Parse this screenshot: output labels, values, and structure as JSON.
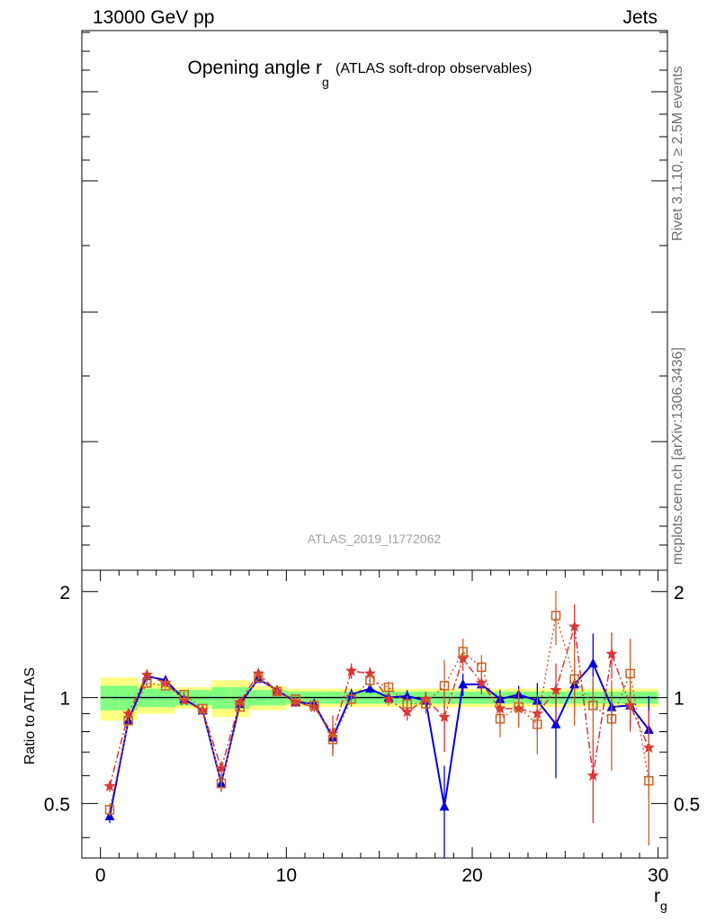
{
  "header": {
    "left": "13000 GeV pp",
    "right": "Jets"
  },
  "side_labels": {
    "rivet": "Rivet 3.1.10, ≥ 2.5M events",
    "url": "mcplots.cern.ch [arXiv:1306.3436]"
  },
  "main_panel": {
    "title_main": "Opening angle r",
    "title_sub": "g",
    "title_suffix": "(ATLAS soft-drop observables)",
    "watermark": "ATLAS_2019_I1772062"
  },
  "colors": {
    "yellow_band": "#ffff80",
    "green_band": "#80ff80",
    "blue_series": "#0000dd",
    "red_series": "#dd3333",
    "orange_series": "#c8622a"
  },
  "chart_data": {
    "type": "line",
    "ylabel": "Ratio to ATLAS",
    "xlabel_main": "r",
    "xlabel_sub": "g",
    "xlim": [
      -1,
      30.5
    ],
    "ylim": [
      0.35,
      2.3
    ],
    "x_ticks": [
      0,
      10,
      20,
      30
    ],
    "y_ticks": [
      0.5,
      1,
      2
    ],
    "y_tick_labels": [
      "0.5",
      "1",
      "2"
    ],
    "reference_line": 1,
    "bands": {
      "green_halfwidth": [
        0.08,
        0.08,
        0.06,
        0.06,
        0.05,
        0.05,
        0.07,
        0.07,
        0.05,
        0.05,
        0.04,
        0.04,
        0.04,
        0.04,
        0.04,
        0.04,
        0.04,
        0.04,
        0.04,
        0.04,
        0.04,
        0.04,
        0.04,
        0.04,
        0.04,
        0.04,
        0.04,
        0.04,
        0.04,
        0.04
      ],
      "yellow_halfwidth": [
        0.14,
        0.14,
        0.1,
        0.1,
        0.07,
        0.07,
        0.12,
        0.12,
        0.08,
        0.08,
        0.06,
        0.06,
        0.06,
        0.06,
        0.06,
        0.06,
        0.06,
        0.06,
        0.06,
        0.06,
        0.06,
        0.06,
        0.06,
        0.06,
        0.06,
        0.06,
        0.06,
        0.06,
        0.06,
        0.06
      ]
    },
    "series": [
      {
        "marker": "triangle",
        "line": "solid",
        "color": "#0000dd",
        "x": [
          0.5,
          1.5,
          2.5,
          3.5,
          4.5,
          5.5,
          6.5,
          7.5,
          8.5,
          9.5,
          10.5,
          11.5,
          12.5,
          13.5,
          14.5,
          15.5,
          16.5,
          17.5,
          18.5,
          19.5,
          20.5,
          21.5,
          22.5,
          23.5,
          24.5,
          25.5,
          26.5,
          27.5,
          28.5,
          29.5
        ],
        "y": [
          0.46,
          0.86,
          1.15,
          1.12,
          0.99,
          0.92,
          0.57,
          0.96,
          1.13,
          1.05,
          0.97,
          0.96,
          0.77,
          1.02,
          1.06,
          1.0,
          1.01,
          0.98,
          0.49,
          1.09,
          1.09,
          0.99,
          1.02,
          0.98,
          0.84,
          1.09,
          1.25,
          0.94,
          0.95,
          0.81
        ],
        "err": [
          0.02,
          0.02,
          0.02,
          0.02,
          0.02,
          0.02,
          0.03,
          0.02,
          0.02,
          0.02,
          0.03,
          0.03,
          0.05,
          0.04,
          0.03,
          0.03,
          0.04,
          0.05,
          0.15,
          0.08,
          0.05,
          0.06,
          0.06,
          0.12,
          0.25,
          0.2,
          0.27,
          0.1,
          0.12,
          0.2
        ]
      },
      {
        "marker": "star",
        "line": "dashdot",
        "color": "#dd3333",
        "x": [
          0.5,
          1.5,
          2.5,
          3.5,
          4.5,
          5.5,
          6.5,
          7.5,
          8.5,
          9.5,
          10.5,
          11.5,
          12.5,
          13.5,
          14.5,
          15.5,
          16.5,
          17.5,
          18.5,
          19.5,
          20.5,
          21.5,
          22.5,
          23.5,
          24.5,
          25.5,
          26.5,
          27.5,
          28.5,
          29.5
        ],
        "y": [
          0.56,
          0.9,
          1.16,
          1.1,
          0.98,
          0.92,
          0.63,
          0.97,
          1.17,
          1.04,
          0.97,
          0.94,
          0.79,
          1.19,
          1.17,
          0.99,
          0.91,
          0.99,
          0.88,
          1.29,
          1.1,
          0.93,
          0.93,
          0.9,
          1.05,
          1.59,
          0.6,
          1.33,
          0.95,
          0.72
        ],
        "err": [
          0.02,
          0.02,
          0.02,
          0.02,
          0.02,
          0.02,
          0.03,
          0.02,
          0.02,
          0.02,
          0.03,
          0.03,
          0.1,
          0.06,
          0.05,
          0.04,
          0.05,
          0.05,
          0.18,
          0.1,
          0.08,
          0.1,
          0.1,
          0.12,
          0.2,
          0.25,
          0.16,
          0.2,
          0.15,
          0.2
        ]
      },
      {
        "marker": "square",
        "line": "dotted",
        "color": "#c8622a",
        "x": [
          0.5,
          1.5,
          2.5,
          3.5,
          4.5,
          5.5,
          6.5,
          7.5,
          8.5,
          9.5,
          10.5,
          11.5,
          12.5,
          13.5,
          14.5,
          15.5,
          16.5,
          17.5,
          18.5,
          19.5,
          20.5,
          21.5,
          22.5,
          23.5,
          24.5,
          25.5,
          26.5,
          27.5,
          28.5,
          29.5
        ],
        "y": [
          0.48,
          0.86,
          1.1,
          1.08,
          1.02,
          0.93,
          0.57,
          0.94,
          1.14,
          1.04,
          0.99,
          0.95,
          0.76,
          0.99,
          1.12,
          1.07,
          0.96,
          0.96,
          1.08,
          1.35,
          1.22,
          0.87,
          0.94,
          0.84,
          1.71,
          1.13,
          0.95,
          0.87,
          1.17,
          0.58
        ],
        "err": [
          0.02,
          0.02,
          0.02,
          0.02,
          0.02,
          0.02,
          0.03,
          0.02,
          0.02,
          0.02,
          0.03,
          0.03,
          0.08,
          0.05,
          0.05,
          0.04,
          0.05,
          0.06,
          0.2,
          0.12,
          0.1,
          0.1,
          0.12,
          0.15,
          0.3,
          0.3,
          0.2,
          0.25,
          0.3,
          0.2
        ]
      }
    ]
  }
}
